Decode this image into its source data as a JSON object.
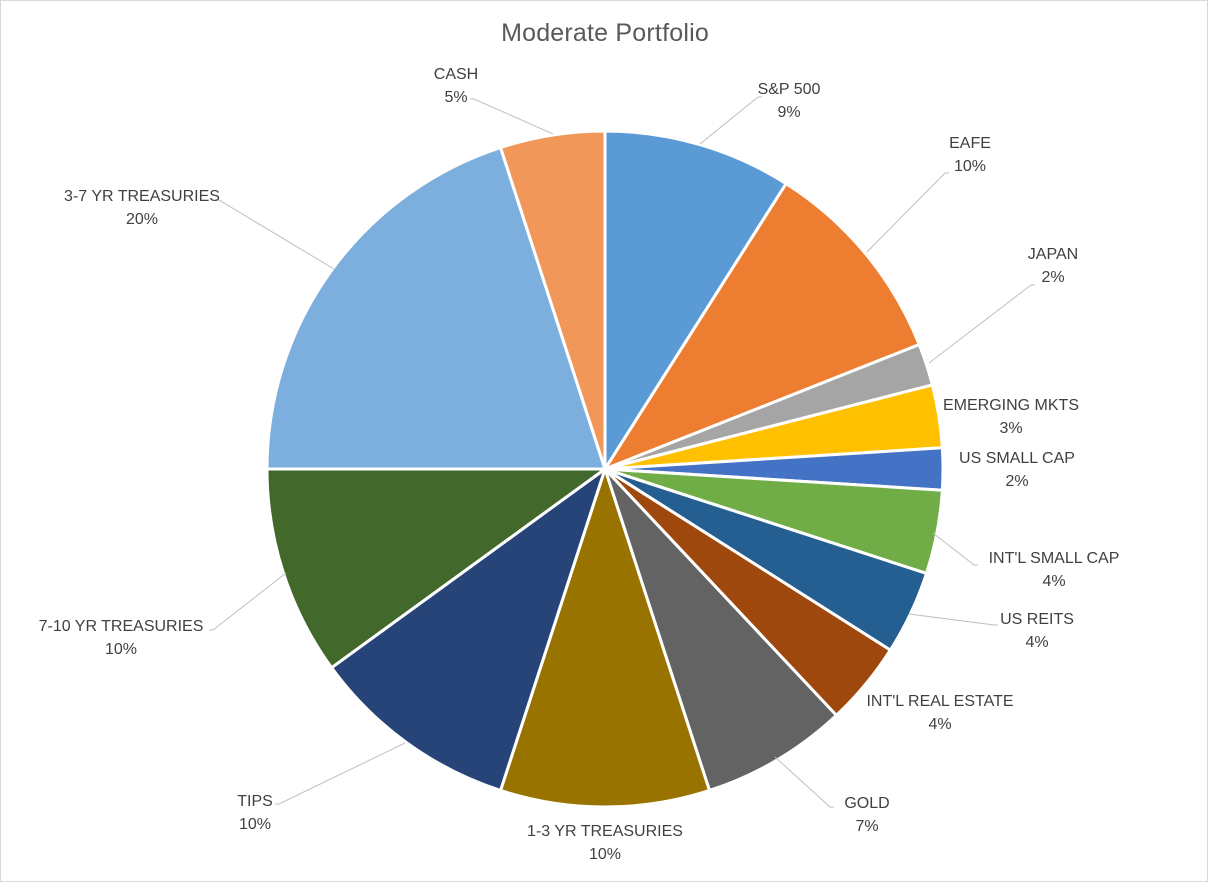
{
  "chart_data": {
    "type": "pie",
    "title": "Moderate Portfolio",
    "slices": [
      {
        "name": "S&P 500",
        "value": 9,
        "label": "9%",
        "color": "#5B9BD5"
      },
      {
        "name": "EAFE",
        "value": 10,
        "label": "10%",
        "color": "#ED7D31"
      },
      {
        "name": "JAPAN",
        "value": 2,
        "label": "2%",
        "color": "#A5A5A5"
      },
      {
        "name": "EMERGING MKTS",
        "value": 3,
        "label": "3%",
        "color": "#FFC000"
      },
      {
        "name": "US SMALL CAP",
        "value": 2,
        "label": "2%",
        "color": "#4472C4"
      },
      {
        "name": "INT'L SMALL CAP",
        "value": 4,
        "label": "4%",
        "color": "#70AD47"
      },
      {
        "name": "US REITS",
        "value": 4,
        "label": "4%",
        "color": "#255E91"
      },
      {
        "name": "INT'L REAL ESTATE",
        "value": 4,
        "label": "4%",
        "color": "#9E480E"
      },
      {
        "name": "GOLD",
        "value": 7,
        "label": "7%",
        "color": "#636363"
      },
      {
        "name": "1-3 YR TREASURIES",
        "value": 10,
        "label": "10%",
        "color": "#997300"
      },
      {
        "name": "TIPS",
        "value": 10,
        "label": "10%",
        "color": "#264478"
      },
      {
        "name": "7-10 YR TREASURIES",
        "value": 10,
        "label": "10%",
        "color": "#43682B"
      },
      {
        "name": "3-7 YR TREASURIES",
        "value": 20,
        "label": "20%",
        "color": "#7CAFDD"
      },
      {
        "name": "CASH",
        "value": 5,
        "label": "5%",
        "color": "#F1975A"
      }
    ],
    "start_angle": 0,
    "direction": "clockwise",
    "legend": "none"
  }
}
